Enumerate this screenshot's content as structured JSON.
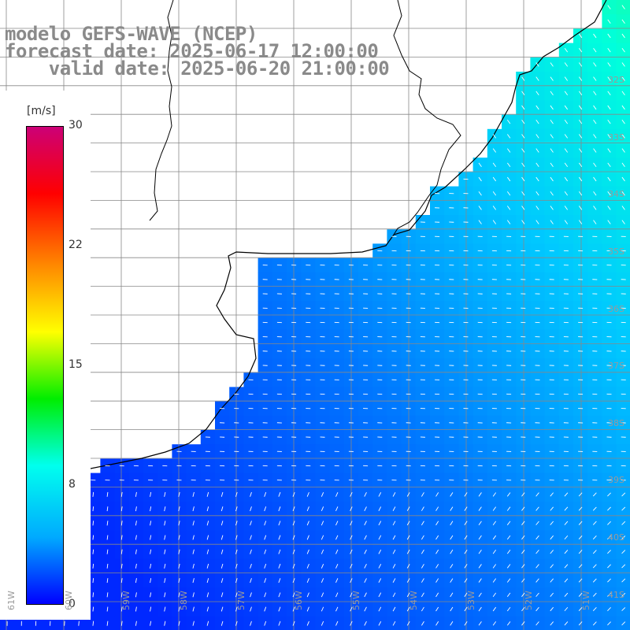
{
  "title": {
    "line1": "modelo GEFS-WAVE (NCEP)",
    "line2": "forecast date: 2025-06-17 12:00:00",
    "line3": "    valid date: 2025-06-20 21:00:00"
  },
  "colorbar": {
    "unit": "[m/s]",
    "ticks": [
      "30",
      "22",
      "15",
      "8",
      "0"
    ],
    "colors": [
      "#cc0077",
      "#ff0000",
      "#ff8800",
      "#ffff00",
      "#00ee00",
      "#00ffee",
      "#00aaff",
      "#0000ff"
    ]
  },
  "latitude_labels": [
    "32S",
    "33S",
    "34S",
    "35S",
    "36S",
    "37S",
    "38S",
    "39S",
    "40S",
    "41S"
  ],
  "longitude_labels": [
    "61W",
    "60W",
    "59W",
    "58W",
    "57W",
    "56W",
    "55W",
    "54W",
    "53W",
    "52W",
    "51W"
  ],
  "map": {
    "ocean_color_low": "#0000ff",
    "ocean_color_mid": "#00aaff",
    "ocean_color_high": "#00ff88",
    "land_color": "#ffffff",
    "coastline_color": "#000000",
    "grid_color": "#888888",
    "arrow_color": "#ffffff"
  }
}
